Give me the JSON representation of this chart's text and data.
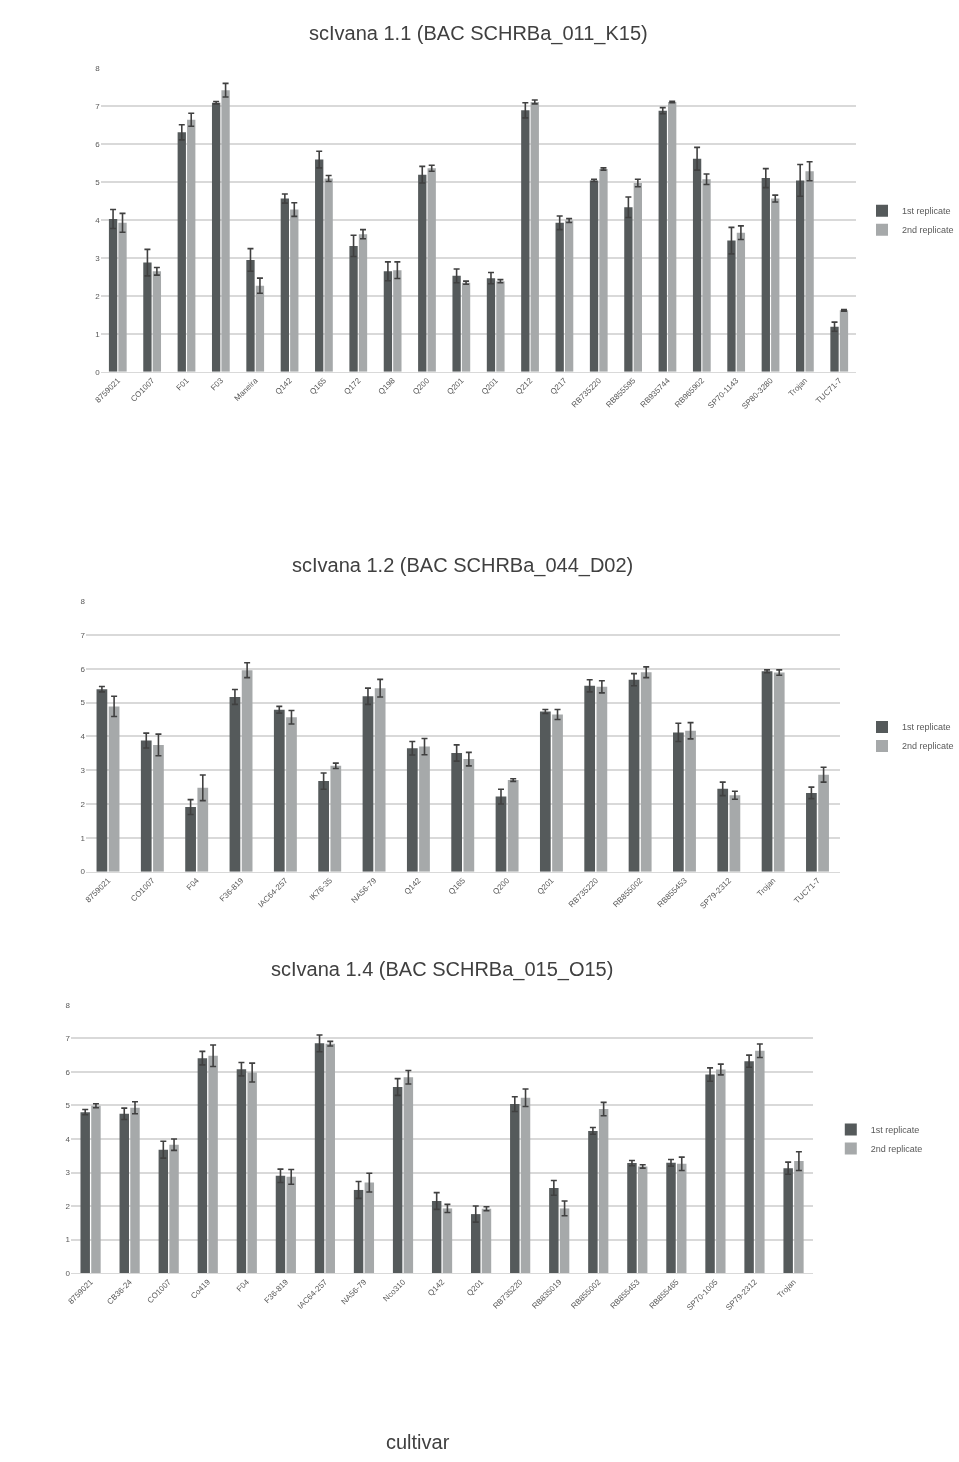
{
  "chart_data": [
    {
      "type": "bar",
      "title": "scIvana 1.1 (BAC SCHRBa_011_K15)",
      "categories": [
        "8759021",
        "CO1007",
        "F01",
        "F03",
        "Maneira",
        "Q142",
        "Q165",
        "Q172",
        "Q198",
        "Q200",
        "Q201",
        "Q201",
        "Q212",
        "Q217",
        "RB735220",
        "RB855595",
        "RB935744",
        "RB965902",
        "SP70-1143",
        "SP80-3280",
        "Trojan",
        "TUC71-7"
      ],
      "ylim": [
        0,
        8
      ],
      "yticks": [
        0,
        1,
        2,
        3,
        4,
        5,
        6,
        7,
        8
      ],
      "grid": "y",
      "legend": "right",
      "series": [
        {
          "name": "1st replicate",
          "color": "#555a5b",
          "values": [
            4.03,
            2.88,
            6.32,
            7.1,
            2.95,
            4.57,
            5.6,
            3.32,
            2.65,
            5.2,
            2.53,
            2.47,
            6.9,
            3.93,
            5.05,
            4.34,
            6.89,
            5.62,
            3.46,
            5.11,
            5.05,
            1.19
          ],
          "errors": [
            0.25,
            0.35,
            0.2,
            0.03,
            0.3,
            0.12,
            0.22,
            0.28,
            0.25,
            0.22,
            0.18,
            0.15,
            0.2,
            0.18,
            0.03,
            0.27,
            0.08,
            0.3,
            0.35,
            0.25,
            0.42,
            0.12
          ]
        },
        {
          "name": "2nd replicate",
          "color": "#a6a9aa",
          "values": [
            3.93,
            2.65,
            6.65,
            7.43,
            2.27,
            4.28,
            5.1,
            3.63,
            2.68,
            5.37,
            2.35,
            2.39,
            7.12,
            3.99,
            5.35,
            4.98,
            7.12,
            5.08,
            3.67,
            4.57,
            5.29,
            1.62
          ],
          "errors": [
            0.25,
            0.1,
            0.17,
            0.18,
            0.2,
            0.18,
            0.08,
            0.12,
            0.22,
            0.08,
            0.04,
            0.04,
            0.05,
            0.05,
            0.03,
            0.1,
            0.02,
            0.14,
            0.18,
            0.09,
            0.25,
            0.02
          ]
        }
      ]
    },
    {
      "type": "bar",
      "title": "scIvana 1.2 (BAC SCHRBa_044_D02)",
      "categories": [
        "8759021",
        "CO1007",
        "F04",
        "F36-819",
        "IAC64-257",
        "IK76-35",
        "NA56-79",
        "Q142",
        "Q165",
        "Q200",
        "Q201",
        "RB735220",
        "RB855002",
        "RB855453",
        "SP79-2312",
        "Trojan",
        "TUC71-7"
      ],
      "ylim": [
        0,
        8
      ],
      "yticks": [
        0,
        1,
        2,
        3,
        4,
        5,
        6,
        7,
        8
      ],
      "grid": "y",
      "legend": "right",
      "series": [
        {
          "name": "1st replicate",
          "color": "#555a5b",
          "values": [
            5.4,
            3.88,
            1.91,
            5.17,
            4.79,
            2.68,
            5.19,
            3.65,
            3.51,
            2.22,
            4.74,
            5.5,
            5.68,
            4.12,
            2.45,
            5.93,
            2.33
          ],
          "errors": [
            0.08,
            0.22,
            0.22,
            0.22,
            0.1,
            0.24,
            0.24,
            0.2,
            0.24,
            0.22,
            0.06,
            0.18,
            0.18,
            0.27,
            0.2,
            0.04,
            0.17
          ]
        },
        {
          "name": "2nd replicate",
          "color": "#a6a9aa",
          "values": [
            4.89,
            3.75,
            2.48,
            5.96,
            4.57,
            3.13,
            5.43,
            3.7,
            3.33,
            2.71,
            4.65,
            5.47,
            5.9,
            4.17,
            2.26,
            5.89,
            2.87
          ],
          "errors": [
            0.3,
            0.32,
            0.38,
            0.22,
            0.2,
            0.08,
            0.26,
            0.24,
            0.2,
            0.04,
            0.15,
            0.18,
            0.16,
            0.24,
            0.12,
            0.08,
            0.22
          ]
        }
      ]
    },
    {
      "type": "bar",
      "title": "scIvana 1.4 (BAC SCHRBa_015_O15)",
      "xlabel": "cultivar",
      "categories": [
        "8759021",
        "CB36-24",
        "CO1007",
        "Co419",
        "F04",
        "F36-819",
        "IAC64-257",
        "NA56-79",
        "Nco310",
        "Q142",
        "Q201",
        "RB735220",
        "RB835019",
        "RB855002",
        "RB855453",
        "RB855465",
        "SP70-1005",
        "SP79-2312",
        "Trojan"
      ],
      "ylim": [
        0,
        8
      ],
      "yticks": [
        0,
        1,
        2,
        3,
        4,
        5,
        6,
        7,
        8
      ],
      "grid": "y",
      "legend": "right",
      "series": [
        {
          "name": "1st replicate",
          "color": "#555a5b",
          "values": [
            4.8,
            4.75,
            3.68,
            6.41,
            6.08,
            2.9,
            6.85,
            2.48,
            5.55,
            2.15,
            1.76,
            5.04,
            2.54,
            4.24,
            3.28,
            3.29,
            5.92,
            6.32,
            3.13
          ],
          "errors": [
            0.08,
            0.17,
            0.25,
            0.2,
            0.2,
            0.2,
            0.25,
            0.25,
            0.25,
            0.25,
            0.24,
            0.22,
            0.22,
            0.1,
            0.08,
            0.1,
            0.2,
            0.18,
            0.18
          ]
        },
        {
          "name": "2nd replicate",
          "color": "#a6a9aa",
          "values": [
            4.99,
            4.93,
            3.83,
            6.48,
            5.98,
            2.87,
            6.84,
            2.7,
            5.84,
            1.93,
            1.92,
            5.23,
            1.93,
            4.89,
            3.18,
            3.26,
            6.07,
            6.63,
            3.34
          ],
          "errors": [
            0.06,
            0.18,
            0.17,
            0.32,
            0.28,
            0.22,
            0.07,
            0.28,
            0.2,
            0.12,
            0.06,
            0.26,
            0.22,
            0.2,
            0.05,
            0.2,
            0.16,
            0.2,
            0.28
          ]
        }
      ]
    }
  ]
}
